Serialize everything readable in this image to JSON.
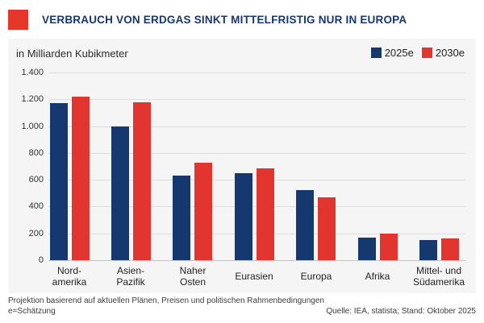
{
  "header": {
    "title": "VERBRAUCH VON ERDGAS SINKT MITTELFRISTIG NUR IN EUROPA",
    "accent_color": "#e6362c",
    "title_color": "#17386e"
  },
  "chart_data": {
    "type": "bar",
    "title": "VERBRAUCH VON ERDGAS SINKT MITTELFRISTIG NUR IN EUROPA",
    "unit_label": "in Milliarden Kubikmeter",
    "categories": [
      "Nordamerika",
      "Asien-Pazifik",
      "Naher Osten",
      "Eurasien",
      "Europa",
      "Afrika",
      "Mittel- und Südamerika"
    ],
    "category_labels": [
      [
        "Nord-",
        "amerika"
      ],
      [
        "Asien-",
        "Pazifik"
      ],
      [
        "Naher",
        "Osten"
      ],
      [
        "Eurasien"
      ],
      [
        "Europa"
      ],
      [
        "Afrika"
      ],
      [
        "Mittel- und",
        "Südamerika"
      ]
    ],
    "series": [
      {
        "name": "2025e",
        "color": "#15396f",
        "values": [
          1170,
          995,
          630,
          650,
          525,
          170,
          150
        ]
      },
      {
        "name": "2030e",
        "color": "#e23530",
        "values": [
          1220,
          1175,
          730,
          685,
          470,
          200,
          160
        ]
      }
    ],
    "ylim": [
      0,
      1400
    ],
    "yticks": [
      {
        "value": 1400,
        "label": "1.400"
      },
      {
        "value": 1200,
        "label": "1.200"
      },
      {
        "value": 1000,
        "label": "1.000"
      },
      {
        "value": 800,
        "label": "800"
      },
      {
        "value": 600,
        "label": "600"
      },
      {
        "value": 400,
        "label": "400"
      },
      {
        "value": 200,
        "label": "200"
      },
      {
        "value": 0,
        "label": "0"
      }
    ],
    "grid": true,
    "legend_position": "top-right",
    "panel_background": "#f5f5f5"
  },
  "footer": {
    "note": "Projektion basierend auf aktuellen Plänen, Preisen und politischen Rahmenbedingungen",
    "estimate_note": "e=Schätzung",
    "source": "Quelle: IEA, statista; Stand: Oktober 2025"
  }
}
